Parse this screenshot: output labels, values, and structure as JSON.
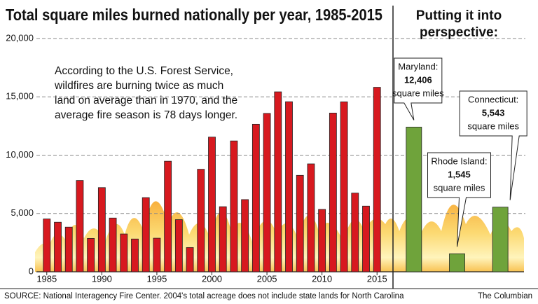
{
  "chart_data": [
    {
      "type": "bar",
      "title": "Total square miles burned nationally per year, 1985-2015",
      "annotation": [
        "According to the U.S. Forest Service,",
        "wildfires are burning twice as much",
        "land on average than in 1970, and the",
        "average fire season is 78 days longer."
      ],
      "x": [
        1985,
        1986,
        1987,
        1988,
        1989,
        1990,
        1991,
        1992,
        1993,
        1994,
        1995,
        1996,
        1997,
        1998,
        1999,
        2000,
        2001,
        2002,
        2003,
        2004,
        2005,
        2006,
        2007,
        2008,
        2009,
        2010,
        2011,
        2012,
        2013,
        2014,
        2015
      ],
      "values": [
        4531,
        4250,
        3830,
        7830,
        2860,
        7220,
        4610,
        3240,
        2810,
        6360,
        2880,
        9480,
        4470,
        2080,
        8790,
        11550,
        5580,
        11220,
        6190,
        12650,
        13580,
        15430,
        14580,
        8270,
        9250,
        5350,
        13610,
        14570,
        6750,
        5630,
        15820
      ],
      "color": "#d7191f",
      "xlim": [
        1984.25,
        2015.75
      ],
      "xticks": [
        1985,
        1990,
        1995,
        2000,
        2005,
        2010,
        2015
      ],
      "ylim": [
        0,
        20000
      ],
      "yticks": [
        0,
        {
          "value": 5000,
          "label": "5,000"
        },
        {
          "value": 10000,
          "label": "10,000"
        },
        {
          "value": 15000,
          "label": "15,000"
        },
        {
          "value": 20000,
          "label": "20,000"
        }
      ],
      "grid": true,
      "source": "SOURCE: National Interagency Fire Center.   2004's total acreage does not include state lands for North Carolina",
      "credit": "The Columbian"
    },
    {
      "type": "bar",
      "title": [
        "Putting it into",
        "perspective:"
      ],
      "categories": [
        "Maryland:",
        "Rhode Island:",
        "Connecticut:"
      ],
      "values": [
        12406,
        1545,
        5543
      ],
      "value_labels": [
        "12,406",
        "1,545",
        "5,543"
      ],
      "unit": "square miles",
      "color": "#6fa33b",
      "ylim": [
        0,
        20000
      ]
    }
  ]
}
